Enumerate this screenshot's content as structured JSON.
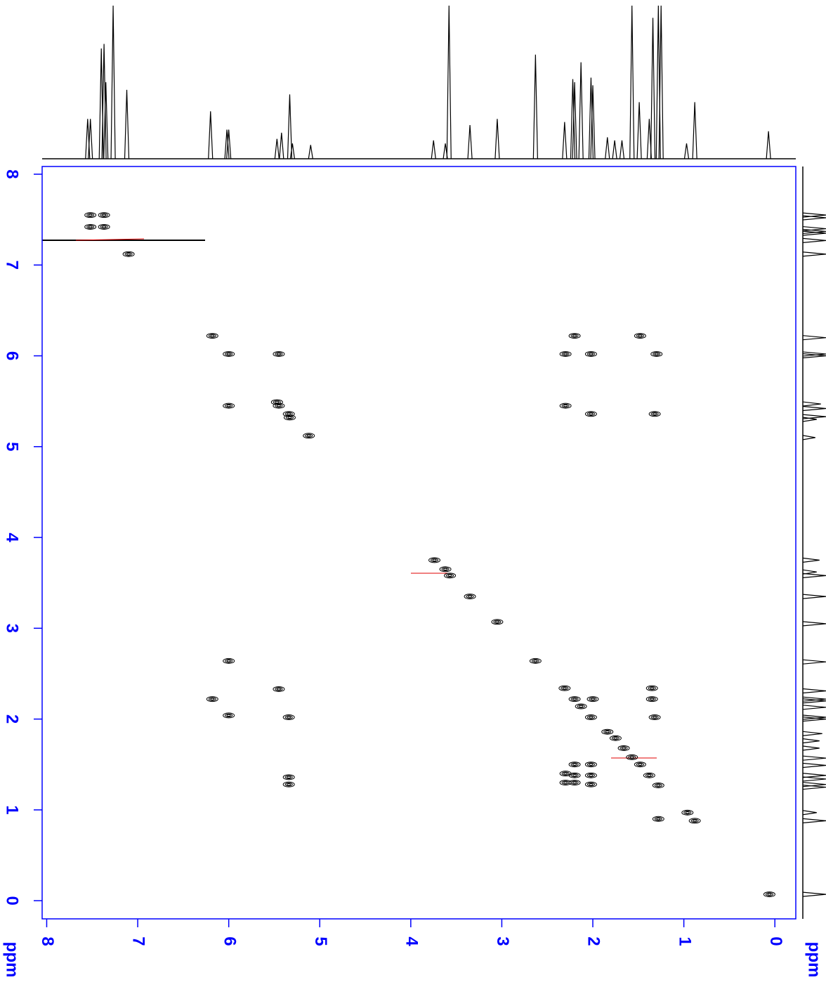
{
  "chart_data": {
    "type": "contour",
    "xlabel": "ppm",
    "ylabel": "ppm",
    "axis_color": "#0000ff",
    "xlim": [
      8.05,
      -0.23
    ],
    "ylim": [
      -0.2,
      8.085
    ],
    "xticks": [
      8,
      7,
      6,
      5,
      4,
      3,
      2,
      1,
      0
    ],
    "yticks": [
      8,
      7,
      6,
      5,
      4,
      3,
      2,
      1,
      0
    ],
    "series": [
      {
        "color": "#000000",
        "x": [
          7.52,
          7.37,
          7.52,
          7.37,
          7.1,
          6.18,
          6.0,
          5.45,
          2.02,
          2.3,
          1.3,
          2.2,
          1.48,
          6.0,
          5.47,
          5.45,
          5.34,
          5.33,
          2.3,
          2.02,
          1.32,
          5.12,
          3.74,
          3.62,
          3.57,
          3.35,
          3.05,
          2.63,
          6.0,
          6.18,
          5.45,
          6.0,
          5.34,
          5.34,
          5.34,
          2.31,
          2.2,
          2.13,
          2.02,
          2.0,
          1.35,
          1.35,
          1.32,
          1.84,
          1.75,
          1.66,
          1.57,
          1.48,
          1.38,
          1.28,
          2.2,
          2.02,
          2.3,
          2.2,
          2.02,
          2.3,
          2.2,
          2.02,
          1.28,
          0.88,
          0.96,
          0.06
        ],
        "values": [
          7.55,
          7.55,
          7.42,
          7.42,
          7.12,
          6.22,
          6.02,
          6.02,
          6.02,
          6.02,
          6.02,
          6.22,
          6.22,
          5.45,
          5.49,
          5.45,
          5.36,
          5.32,
          5.45,
          5.36,
          5.36,
          5.12,
          3.75,
          3.65,
          3.58,
          3.35,
          3.07,
          2.64,
          2.64,
          2.22,
          2.33,
          2.04,
          2.02,
          1.36,
          1.28,
          2.34,
          2.22,
          2.14,
          2.02,
          2.22,
          2.34,
          2.22,
          2.02,
          1.86,
          1.79,
          1.68,
          1.58,
          1.5,
          1.38,
          1.27,
          1.5,
          1.5,
          1.4,
          1.38,
          1.38,
          1.3,
          1.3,
          1.28,
          0.9,
          0.88,
          0.97,
          0.07
        ]
      }
    ],
    "projection": {
      "color": "#000000",
      "ylim": [
        0,
        100
      ],
      "x": [
        7.55,
        7.52,
        7.4,
        7.37,
        7.35,
        7.27,
        7.12,
        6.2,
        6.02,
        6.0,
        5.47,
        5.42,
        5.33,
        5.3,
        5.1,
        3.75,
        3.62,
        3.58,
        3.35,
        3.05,
        2.63,
        2.31,
        2.22,
        2.2,
        2.13,
        2.02,
        2.0,
        1.84,
        1.76,
        1.68,
        1.57,
        1.49,
        1.38,
        1.34,
        1.28,
        1.25,
        0.97,
        0.88,
        0.07
      ],
      "values": [
        26,
        26,
        72,
        75,
        50,
        100,
        45,
        31,
        19,
        19,
        13,
        17,
        42,
        10,
        9,
        12,
        10,
        100,
        22,
        26,
        68,
        24,
        52,
        50,
        63,
        53,
        48,
        14,
        12,
        12,
        100,
        37,
        26,
        92,
        100,
        100,
        10,
        37,
        18
      ]
    }
  }
}
